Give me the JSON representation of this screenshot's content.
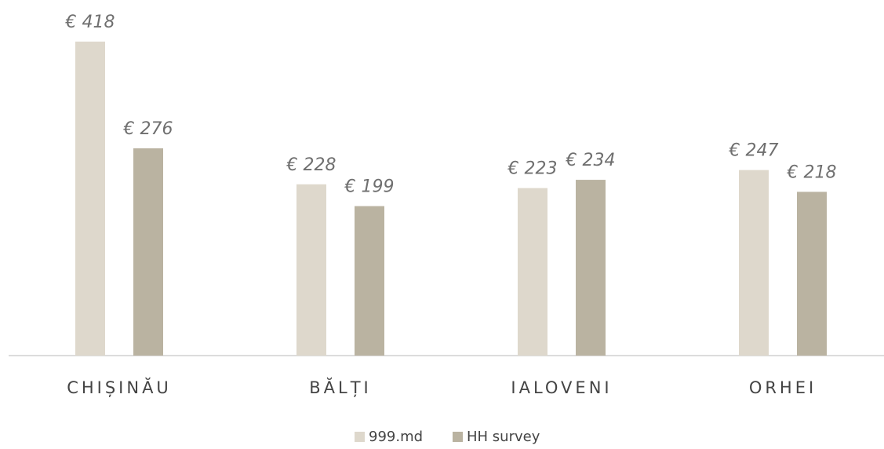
{
  "chart_data": {
    "type": "bar",
    "categories": [
      "CHIȘINĂU",
      "BĂLȚI",
      "IALOVENI",
      "ORHEI"
    ],
    "series": [
      {
        "name": "999.md",
        "color": "#ded8cc",
        "values": [
          418,
          228,
          223,
          247
        ],
        "value_labels": [
          "€ 418",
          "€ 228",
          "€ 223",
          "€ 247"
        ]
      },
      {
        "name": "HH survey",
        "color": "#bab3a1",
        "values": [
          276,
          199,
          234,
          218
        ],
        "value_labels": [
          "€ 276",
          "€ 199",
          "€ 234",
          "€ 218"
        ]
      }
    ]
  }
}
